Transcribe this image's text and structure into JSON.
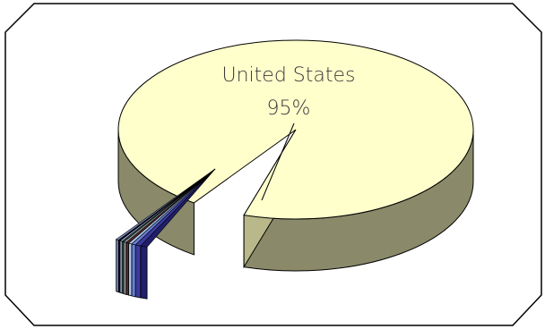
{
  "chart_data": {
    "type": "pie",
    "style": "3d-exploded",
    "slices": [
      {
        "label": "United States",
        "value_label": "95%",
        "value": 95,
        "color": "#ffffcc",
        "side_color": "#8a8a6a"
      },
      {
        "label": "",
        "value": 1.0,
        "color": "#1f1f6b"
      },
      {
        "label": "",
        "value": 0.8,
        "color": "#3a3aa0"
      },
      {
        "label": "",
        "value": 0.6,
        "color": "#6a7fd0"
      },
      {
        "label": "",
        "value": 0.5,
        "color": "#a8c8e8"
      },
      {
        "label": "",
        "value": 0.4,
        "color": "#5a2a2a"
      },
      {
        "label": "",
        "value": 0.4,
        "color": "#9aa0a8"
      },
      {
        "label": "",
        "value": 0.3,
        "color": "#2a5a5a"
      },
      {
        "label": "",
        "value": 0.3,
        "color": "#d8d8f0"
      },
      {
        "label": "",
        "value": 0.3,
        "color": "#0d0d3a"
      },
      {
        "label": "",
        "value": 0.4,
        "color": "#7f8fbf"
      }
    ],
    "legend": "none"
  },
  "frame": {
    "border_color": "#000000",
    "fill": "#ffffff"
  }
}
